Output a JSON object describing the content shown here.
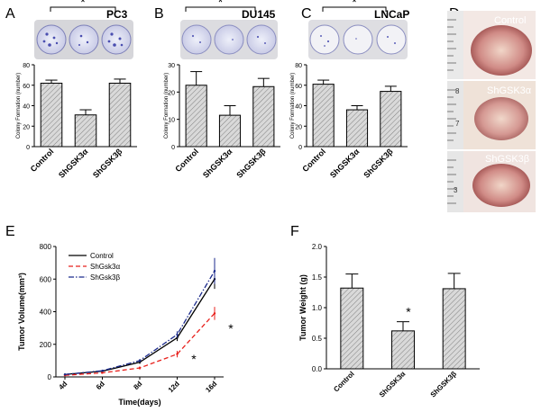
{
  "panel_letters": [
    "A",
    "B",
    "C",
    "D",
    "E",
    "F"
  ],
  "colors": {
    "control": "#000000",
    "gsk3a": "#e8201c",
    "gsk3b": "#1b2a8c",
    "bar_fill": "#bdbdbd",
    "plate_stain": "#5b5fb8",
    "tissue": "#c98a8a"
  },
  "chart_data": [
    {
      "id": "A",
      "type": "bar",
      "title": "PC3",
      "ylabel": "Colony Formation (number)",
      "categories": [
        "Control",
        "ShGSK3α",
        "ShGSK3β"
      ],
      "values": [
        62,
        31,
        62
      ],
      "errors": [
        3,
        5,
        4
      ],
      "ylim": [
        0,
        80
      ],
      "yticks": [
        0,
        20,
        40,
        60,
        80
      ],
      "significance": "*"
    },
    {
      "id": "B",
      "type": "bar",
      "title": "DU145",
      "ylabel": "Colony Formation (number)",
      "categories": [
        "Control",
        "ShGSK3α",
        "ShGSK3β"
      ],
      "values": [
        22.5,
        11.5,
        22
      ],
      "errors": [
        5,
        3.5,
        3
      ],
      "ylim": [
        0,
        30
      ],
      "yticks": [
        0,
        10,
        20,
        30
      ],
      "significance": "*"
    },
    {
      "id": "C",
      "type": "bar",
      "title": "LNCaP",
      "ylabel": "Colony Formation (number)",
      "categories": [
        "Control",
        "ShGSK3α",
        "ShGSK3β"
      ],
      "values": [
        61,
        36,
        54
      ],
      "errors": [
        4,
        4,
        5
      ],
      "ylim": [
        0,
        80
      ],
      "yticks": [
        0,
        20,
        40,
        60,
        80
      ],
      "significance": "*"
    },
    {
      "id": "E",
      "type": "line",
      "xlabel": "Time(days)",
      "ylabel": "Tumor Volume(mm³)",
      "x": [
        "4d",
        "6d",
        "8d",
        "12d",
        "16d"
      ],
      "ylim": [
        0,
        800
      ],
      "yticks": [
        0,
        200,
        400,
        600,
        800
      ],
      "legend_position": "top-left",
      "series": [
        {
          "name": "Control",
          "values": [
            15,
            35,
            90,
            240,
            600
          ],
          "errors": [
            3,
            5,
            10,
            20,
            60
          ],
          "color": "#000000",
          "dash": "solid"
        },
        {
          "name": "ShGsk3α",
          "values": [
            10,
            25,
            55,
            140,
            390
          ],
          "errors": [
            3,
            5,
            10,
            20,
            40
          ],
          "color": "#e8201c",
          "dash": "dashed"
        },
        {
          "name": "ShGsk3β",
          "values": [
            15,
            38,
            100,
            260,
            650
          ],
          "errors": [
            3,
            5,
            10,
            20,
            80
          ],
          "color": "#1b2a8c",
          "dash": "dashdot"
        }
      ],
      "significance": [
        "*",
        "*"
      ]
    },
    {
      "id": "F",
      "type": "bar",
      "ylabel": "Tumor Weight (g)",
      "categories": [
        "Control",
        "ShGSK3α",
        "ShGSK3β"
      ],
      "values": [
        1.32,
        0.62,
        1.31
      ],
      "errors": [
        0.23,
        0.15,
        0.25
      ],
      "ylim": [
        0,
        2.0
      ],
      "yticks": [
        0.0,
        0.5,
        1.0,
        1.5,
        2.0
      ],
      "significance": "*"
    }
  ],
  "mouse_images": {
    "labels": [
      "Control",
      "ShGSK3α",
      "ShGSK3β"
    ],
    "ruler_marks": [
      "8",
      "7",
      "3"
    ]
  }
}
